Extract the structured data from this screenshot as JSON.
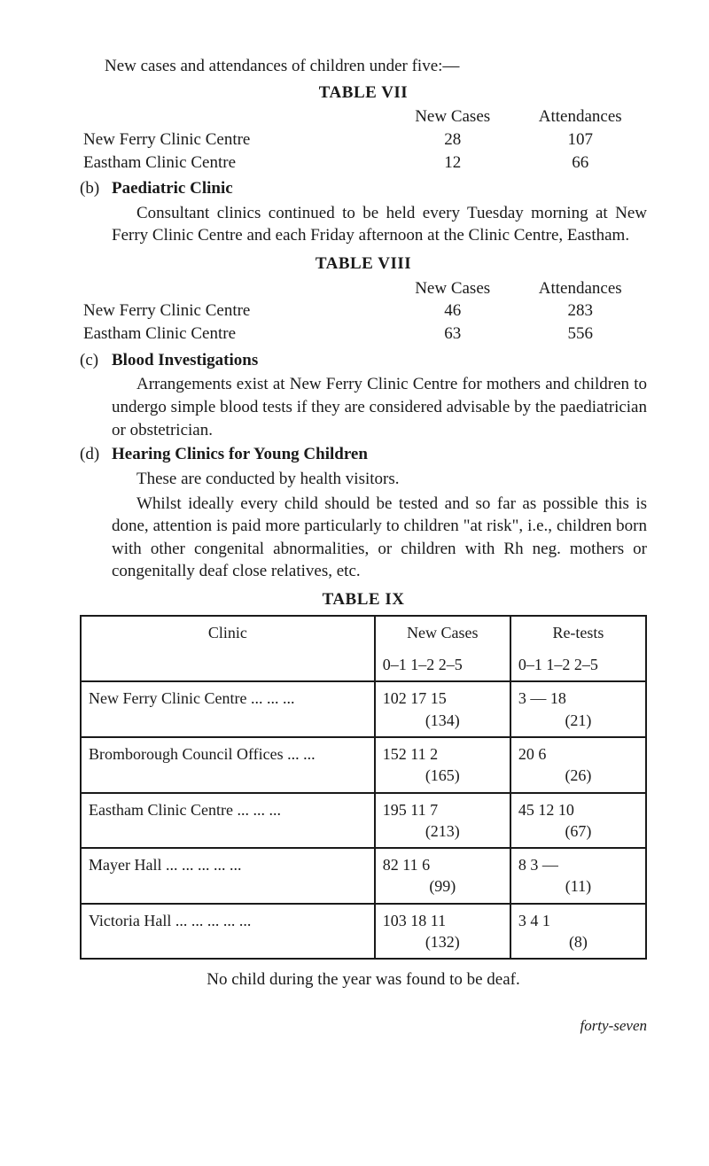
{
  "intro": "New cases and attendances of children under five:—",
  "table7": {
    "title": "TABLE VII",
    "hdr1": "New Cases",
    "hdr2": "Attendances",
    "rows": [
      {
        "label": "New Ferry Clinic Centre",
        "c1": "28",
        "c2": "107"
      },
      {
        "label": "Eastham Clinic Centre",
        "c1": "12",
        "c2": "66"
      }
    ]
  },
  "b": {
    "tag": "(b)",
    "heading": "Paediatric Clinic",
    "text": "Consultant clinics continued to be held every Tuesday morning at New Ferry Clinic Centre and each Friday afternoon at the Clinic Centre, Eastham."
  },
  "table8": {
    "title": "TABLE VIII",
    "hdr1": "New Cases",
    "hdr2": "Attendances",
    "rows": [
      {
        "label": "New Ferry Clinic Centre",
        "c1": "46",
        "c2": "283"
      },
      {
        "label": "Eastham Clinic Centre",
        "c1": "63",
        "c2": "556"
      }
    ]
  },
  "c": {
    "tag": "(c)",
    "heading": "Blood Investigations",
    "text": "Arrangements exist at New Ferry Clinic Centre for mothers and children to undergo simple blood tests if they are con­sidered advisable by the paediatrician or obstetrician."
  },
  "d": {
    "tag": "(d)",
    "heading": "Hearing Clinics for Young Children",
    "p1": "These are conducted by health visitors.",
    "p2": "Whilst ideally every child should be tested and so far as possible this is done, attention is paid more particularly to children \"at risk\", i.e., children born with other congenital abnormalities, or children with Rh neg. mothers or congenitally deaf close relatives, etc."
  },
  "table9": {
    "title": "TABLE IX",
    "hdr_clinic": "Clinic",
    "hdr_new": "New Cases",
    "hdr_re": "Re-tests",
    "age_hdr": "0–1  1–2  2–5",
    "rows": [
      {
        "clinic": "New Ferry Clinic Centre   ...      ...      ...",
        "new_top": "102  17  15",
        "new_sum": "(134)",
        "re_top": "3   —   18",
        "re_sum": "(21)"
      },
      {
        "clinic": "Bromborough Council Offices      ...      ...",
        "new_top": "152  11   2",
        "new_sum": "(165)",
        "re_top": "20   6",
        "re_sum": "(26)"
      },
      {
        "clinic": "Eastham Clinic Centre        ...      ...      ...",
        "new_top": "195  11   7",
        "new_sum": "(213)",
        "re_top": "45  12  10",
        "re_sum": "(67)"
      },
      {
        "clinic": "Mayer Hall      ...        ...        ...        ...        ...",
        "new_top": "82  11   6",
        "new_sum": "(99)",
        "re_top": "8   3   —",
        "re_sum": "(11)"
      },
      {
        "clinic": "Victoria Hall ...       ...        ...        ...        ...",
        "new_top": "103  18  11",
        "new_sum": "(132)",
        "re_top": "3   4   1",
        "re_sum": "(8)"
      }
    ]
  },
  "footer": "No child during the year was found to be deaf.",
  "page_number": "forty-seven"
}
